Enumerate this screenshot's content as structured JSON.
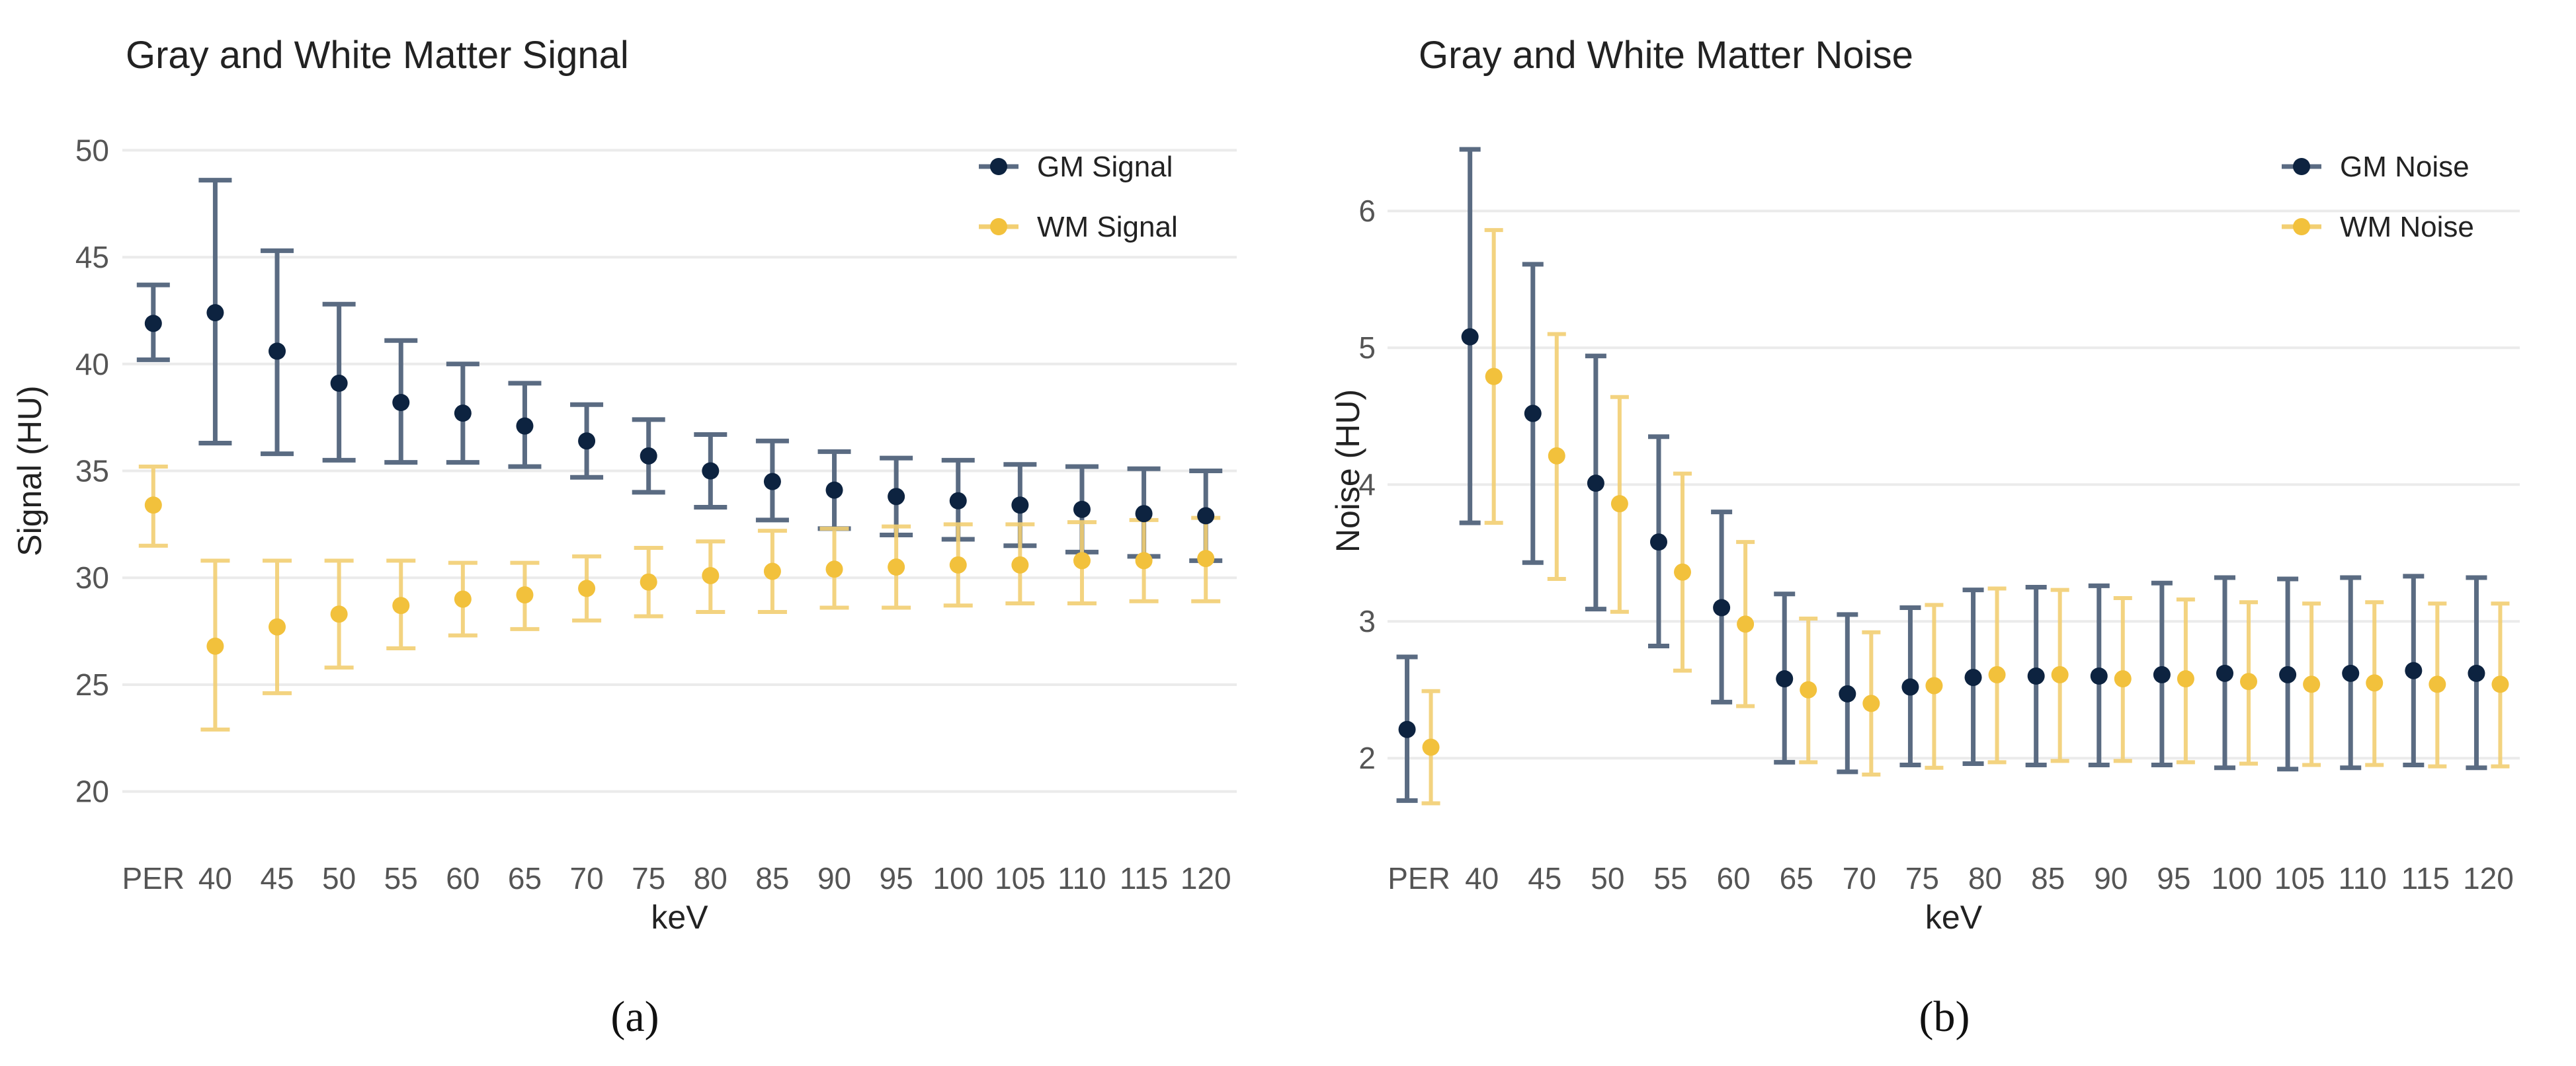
{
  "colors": {
    "gm": "#0d2340",
    "gm_bar": "#5a6b82",
    "wm": "#f2c13c",
    "wm_bar": "#f2cf73"
  },
  "chart_data": [
    {
      "type": "scatter",
      "title": "Gray and White Matter Signal",
      "xlabel": "keV",
      "ylabel": "Signal (HU)",
      "ylim": [
        19,
        51
      ],
      "yticks": [
        "20",
        "25",
        "30",
        "35",
        "40",
        "45",
        "50"
      ],
      "categories": [
        "PER",
        "40",
        "45",
        "50",
        "55",
        "60",
        "65",
        "70",
        "75",
        "80",
        "85",
        "90",
        "95",
        "100",
        "105",
        "110",
        "115",
        "120"
      ],
      "caption": "(a)",
      "legend_position": "top-right",
      "series": [
        {
          "name": "GM Signal",
          "values": [
            41.9,
            42.4,
            40.6,
            39.1,
            38.2,
            37.7,
            37.1,
            36.4,
            35.7,
            35.0,
            34.5,
            34.1,
            33.8,
            33.6,
            33.4,
            33.2,
            33.0,
            32.9
          ],
          "lower": [
            40.2,
            36.3,
            35.8,
            35.5,
            35.4,
            35.4,
            35.2,
            34.7,
            34.0,
            33.3,
            32.7,
            32.3,
            32.0,
            31.8,
            31.5,
            31.2,
            31.0,
            30.8
          ],
          "upper": [
            43.7,
            48.6,
            45.3,
            42.8,
            41.1,
            40.0,
            39.1,
            38.1,
            37.4,
            36.7,
            36.4,
            35.9,
            35.6,
            35.5,
            35.3,
            35.2,
            35.1,
            35.0
          ]
        },
        {
          "name": "WM Signal",
          "values": [
            33.4,
            26.8,
            27.7,
            28.3,
            28.7,
            29.0,
            29.2,
            29.5,
            29.8,
            30.1,
            30.3,
            30.4,
            30.5,
            30.6,
            30.6,
            30.8,
            30.8,
            30.9
          ],
          "lower": [
            31.5,
            22.9,
            24.6,
            25.8,
            26.7,
            27.3,
            27.6,
            28.0,
            28.2,
            28.4,
            28.4,
            28.6,
            28.6,
            28.7,
            28.8,
            28.8,
            28.9,
            28.9
          ],
          "upper": [
            35.2,
            30.8,
            30.8,
            30.8,
            30.8,
            30.7,
            30.7,
            31.0,
            31.4,
            31.7,
            32.2,
            32.3,
            32.4,
            32.5,
            32.5,
            32.6,
            32.7,
            32.8
          ]
        }
      ]
    },
    {
      "type": "scatter",
      "title": "Gray and White Matter Noise",
      "xlabel": "keV",
      "ylabel": "Noise (HU)",
      "ylim": [
        1.6,
        6.6
      ],
      "yticks": [
        "2",
        "3",
        "4",
        "5",
        "6"
      ],
      "categories": [
        "PER",
        "40",
        "45",
        "50",
        "55",
        "60",
        "65",
        "70",
        "75",
        "80",
        "85",
        "90",
        "95",
        "100",
        "105",
        "110",
        "115",
        "120"
      ],
      "caption": "(b)",
      "legend_position": "top-right",
      "series": [
        {
          "name": "GM Noise",
          "values": [
            2.21,
            5.08,
            4.52,
            4.01,
            3.58,
            3.1,
            2.58,
            2.47,
            2.52,
            2.59,
            2.6,
            2.6,
            2.61,
            2.62,
            2.61,
            2.62,
            2.64,
            2.62
          ],
          "lower": [
            1.69,
            3.72,
            3.43,
            3.09,
            2.82,
            2.41,
            1.97,
            1.9,
            1.95,
            1.96,
            1.95,
            1.95,
            1.95,
            1.93,
            1.92,
            1.93,
            1.95,
            1.93
          ],
          "upper": [
            2.74,
            6.45,
            5.61,
            4.94,
            4.35,
            3.8,
            3.2,
            3.05,
            3.1,
            3.23,
            3.25,
            3.26,
            3.28,
            3.32,
            3.31,
            3.32,
            3.33,
            3.32
          ]
        },
        {
          "name": "WM Noise",
          "values": [
            2.08,
            4.79,
            4.21,
            3.86,
            3.36,
            2.98,
            2.5,
            2.4,
            2.53,
            2.61,
            2.61,
            2.58,
            2.58,
            2.56,
            2.54,
            2.55,
            2.54,
            2.54
          ],
          "lower": [
            1.67,
            3.72,
            3.31,
            3.07,
            2.64,
            2.38,
            1.97,
            1.88,
            1.93,
            1.97,
            1.98,
            1.98,
            1.97,
            1.96,
            1.95,
            1.95,
            1.94,
            1.94
          ],
          "upper": [
            2.49,
            5.86,
            5.1,
            4.64,
            4.08,
            3.58,
            3.02,
            2.92,
            3.12,
            3.24,
            3.23,
            3.17,
            3.16,
            3.14,
            3.13,
            3.14,
            3.13,
            3.13
          ]
        }
      ]
    }
  ]
}
